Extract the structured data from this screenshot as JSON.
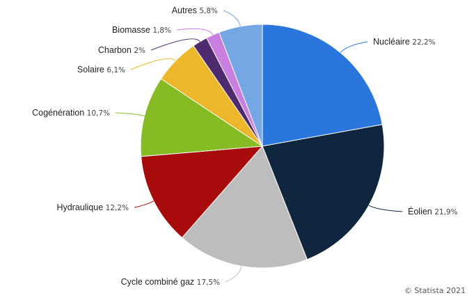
{
  "chart_data": {
    "type": "pie",
    "slices": [
      {
        "name": "Nucléaire",
        "value": 22.2,
        "label": "22,2%",
        "color": "#2a76dd"
      },
      {
        "name": "Éolien",
        "value": 21.9,
        "label": "21,9%",
        "color": "#10263f"
      },
      {
        "name": "Cycle combiné gaz",
        "value": 17.5,
        "label": "17,5%",
        "color": "#bdbdbd"
      },
      {
        "name": "Hydraulique",
        "value": 12.2,
        "label": "12,2%",
        "color": "#a70b0b"
      },
      {
        "name": "Cogénération",
        "value": 10.7,
        "label": "10,7%",
        "color": "#86bb24"
      },
      {
        "name": "Solaire",
        "value": 6.1,
        "label": "6,1%",
        "color": "#ecb72a"
      },
      {
        "name": "Charbon",
        "value": 2,
        "label": "2%",
        "color": "#4e2a6e"
      },
      {
        "name": "Biomasse",
        "value": 1.8,
        "label": "1,8%",
        "color": "#c97fe0"
      },
      {
        "name": "Autres",
        "value": 5.8,
        "label": "5,8%",
        "color": "#76a7e5"
      }
    ]
  },
  "credit": "© Statista 2021"
}
